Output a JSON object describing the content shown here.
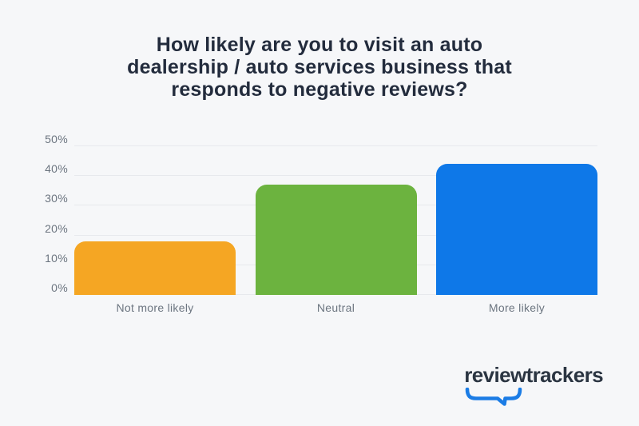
{
  "title": {
    "lines": [
      "How likely are you to visit an auto",
      "dealership / auto services business that",
      "responds to negative reviews?"
    ]
  },
  "chart_data": {
    "type": "bar",
    "title": "How likely are you to visit an auto dealership / auto services business that responds to negative reviews?",
    "categories": [
      "Not more likely",
      "Neutral",
      "More likely"
    ],
    "values": [
      18,
      37,
      44
    ],
    "bar_colors": [
      "#F5A623",
      "#6CB33F",
      "#0E78E8"
    ],
    "xlabel": "",
    "ylabel": "",
    "ylim": [
      0,
      50
    ],
    "yticks": [
      0,
      10,
      20,
      30,
      40,
      50
    ],
    "ytick_labels": [
      "0%",
      "10%",
      "20%",
      "30%",
      "40%",
      "50%"
    ],
    "grid": true,
    "legend": false
  },
  "branding": {
    "logo_text": "reviewtrackers",
    "logo_text_color": "#2B3542",
    "swoosh_color": "#1B7CE5"
  },
  "colors": {
    "background": "#F6F7F9",
    "title_text": "#232C3D",
    "axis_text": "#6C7580",
    "gridline": "#E7E9ED"
  }
}
